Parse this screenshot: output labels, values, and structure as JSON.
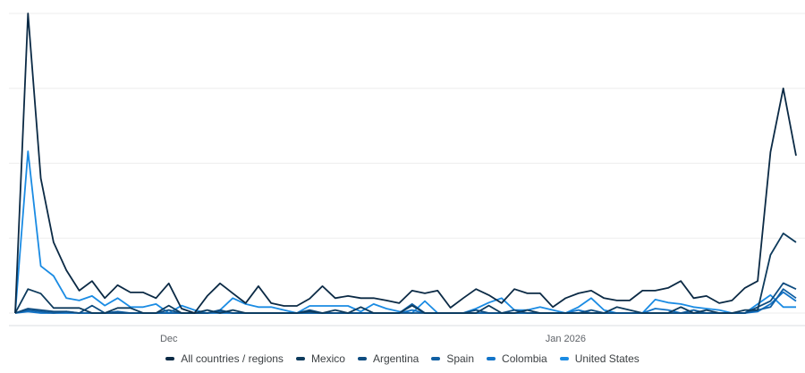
{
  "chart_data": {
    "type": "line",
    "title": "",
    "xlabel": "",
    "ylabel": "",
    "ylim": [
      0,
      100
    ],
    "yticks": [
      0,
      25,
      50,
      75,
      100
    ],
    "grid": true,
    "legend_position": "bottom",
    "x_tick_labels": [
      {
        "index": 12,
        "label": "Dec"
      },
      {
        "index": 43,
        "label": "Jan 2026"
      }
    ],
    "series": [
      {
        "name": "All countries / regions",
        "color": "#0b2a45",
        "values": [
          0,
          100,
          45,
          23.6,
          14.3,
          7.5,
          10.7,
          5,
          9.3,
          6.9,
          6.9,
          5,
          9.9,
          1.5,
          0,
          5.7,
          9.9,
          6.6,
          3.3,
          9,
          3.3,
          2.4,
          2.4,
          4.8,
          9,
          5,
          5.7,
          5,
          5,
          4.2,
          3.3,
          7.5,
          6.6,
          7.5,
          1.8,
          5,
          8,
          6,
          3.3,
          8,
          6.6,
          6.6,
          2,
          5,
          6.6,
          7.5,
          5,
          4.2,
          4.2,
          7.5,
          7.5,
          8.4,
          10.7,
          5,
          5.7,
          3.3,
          4.2,
          8.4,
          10.7,
          53.7,
          75,
          52.5
        ]
      },
      {
        "name": "Mexico",
        "color": "#0d3a5c",
        "values": [
          0,
          8,
          6.5,
          1.7,
          1.7,
          1.7,
          0,
          0,
          1.7,
          1.7,
          0,
          0,
          2.5,
          0,
          0,
          1,
          0,
          1,
          0,
          0,
          0,
          0,
          0,
          0.5,
          0,
          1,
          0,
          2,
          0,
          0,
          0,
          2.5,
          0,
          0,
          0,
          0,
          0,
          2.5,
          0,
          0,
          1,
          0,
          0,
          0,
          0,
          0,
          0,
          2,
          1,
          0,
          0,
          0,
          2,
          0,
          1,
          0,
          0,
          1,
          1,
          19.4,
          26.6,
          23.6
        ]
      },
      {
        "name": "Argentina",
        "color": "#0e4c80",
        "values": [
          0,
          1.5,
          1,
          0.5,
          0.5,
          0,
          2.5,
          0,
          0,
          0,
          0,
          0,
          1,
          0,
          0,
          0,
          1,
          0,
          0,
          0,
          0,
          0,
          0,
          1,
          0,
          0,
          0,
          0,
          0,
          0,
          0,
          0,
          0,
          0,
          0,
          0,
          1,
          0,
          0,
          1,
          0,
          0,
          0,
          0,
          0,
          1,
          0,
          0,
          0,
          0,
          0,
          0,
          0,
          0,
          0,
          0,
          0,
          0,
          2,
          4,
          10,
          8
        ]
      },
      {
        "name": "Spain",
        "color": "#105fa3",
        "values": [
          0,
          1,
          0.5,
          0,
          0.5,
          0,
          0,
          0,
          0.5,
          0,
          0,
          0,
          0,
          0,
          0,
          0,
          0.5,
          0,
          0,
          0,
          0,
          0,
          0,
          0,
          0,
          0,
          0,
          0,
          0,
          0,
          0,
          3,
          0,
          0,
          0,
          0,
          0,
          0,
          0,
          0,
          0,
          0,
          0,
          0,
          0,
          0,
          0,
          0,
          0,
          0,
          0,
          0,
          0,
          1,
          0,
          0,
          0,
          0,
          1,
          2,
          8,
          5
        ]
      },
      {
        "name": "Colombia",
        "color": "#1374c8",
        "values": [
          0,
          0.5,
          0,
          0,
          0,
          0,
          0,
          0,
          0,
          0,
          0,
          0,
          0,
          0,
          0,
          0,
          0,
          0,
          0,
          0,
          0,
          0,
          0,
          0,
          0,
          0,
          0,
          0,
          0,
          0,
          0,
          1,
          0,
          0,
          0,
          0,
          0,
          0,
          0,
          0,
          0,
          0,
          0,
          0,
          1,
          0,
          0,
          0,
          0,
          0,
          1.5,
          1,
          0,
          0,
          0,
          0,
          0,
          0,
          0.5,
          3,
          7,
          4
        ]
      },
      {
        "name": "United States",
        "color": "#1a8be3",
        "values": [
          0,
          54,
          15.7,
          12.4,
          5,
          4.2,
          5.7,
          2.5,
          5,
          2,
          2,
          3,
          0,
          2.5,
          1,
          0,
          1,
          5,
          3,
          2,
          2,
          1,
          0,
          2.4,
          2.4,
          2.4,
          2.4,
          0.5,
          3,
          1.5,
          0.5,
          0,
          4,
          0,
          0,
          0,
          1.5,
          3.5,
          5,
          1,
          1,
          2,
          1,
          0,
          2,
          5,
          1,
          0,
          0,
          0,
          4.5,
          3.5,
          3,
          2,
          1.5,
          1,
          0,
          0,
          3,
          6,
          2,
          2
        ]
      }
    ]
  }
}
